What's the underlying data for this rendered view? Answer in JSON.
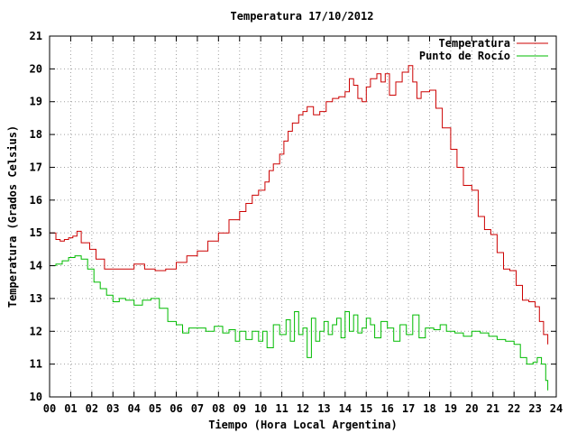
{
  "chart_data": {
    "type": "line",
    "title": "Temperatura 17/10/2012",
    "xlabel": "Tiempo (Hora Local Argentina)",
    "ylabel": "Temperatura (Grados Celsius)",
    "xlim": [
      0,
      24
    ],
    "ylim": [
      10,
      21
    ],
    "x_ticks": [
      "00",
      "01",
      "02",
      "03",
      "04",
      "05",
      "06",
      "07",
      "08",
      "09",
      "10",
      "11",
      "12",
      "13",
      "14",
      "15",
      "16",
      "17",
      "18",
      "19",
      "20",
      "21",
      "22",
      "23",
      "24"
    ],
    "y_ticks": [
      "10",
      "11",
      "12",
      "13",
      "14",
      "15",
      "16",
      "17",
      "18",
      "19",
      "20",
      "21"
    ],
    "grid": true,
    "legend_position": "top-right",
    "series": [
      {
        "name": "Temperatura",
        "color": "#cc0000",
        "points": [
          [
            0.0,
            15.0
          ],
          [
            0.3,
            14.8
          ],
          [
            0.5,
            14.75
          ],
          [
            0.7,
            14.8
          ],
          [
            0.9,
            14.85
          ],
          [
            1.1,
            14.9
          ],
          [
            1.3,
            15.05
          ],
          [
            1.5,
            14.7
          ],
          [
            1.9,
            14.5
          ],
          [
            2.2,
            14.2
          ],
          [
            2.6,
            13.9
          ],
          [
            3.5,
            13.9
          ],
          [
            4.0,
            14.05
          ],
          [
            4.5,
            13.9
          ],
          [
            5.0,
            13.85
          ],
          [
            5.5,
            13.9
          ],
          [
            6.0,
            14.1
          ],
          [
            6.5,
            14.3
          ],
          [
            7.0,
            14.45
          ],
          [
            7.5,
            14.75
          ],
          [
            8.0,
            15.0
          ],
          [
            8.5,
            15.4
          ],
          [
            9.0,
            15.65
          ],
          [
            9.3,
            15.9
          ],
          [
            9.6,
            16.15
          ],
          [
            9.9,
            16.3
          ],
          [
            10.2,
            16.55
          ],
          [
            10.4,
            16.9
          ],
          [
            10.6,
            17.1
          ],
          [
            10.9,
            17.4
          ],
          [
            11.1,
            17.8
          ],
          [
            11.3,
            18.1
          ],
          [
            11.5,
            18.35
          ],
          [
            11.8,
            18.6
          ],
          [
            12.0,
            18.7
          ],
          [
            12.2,
            18.85
          ],
          [
            12.5,
            18.6
          ],
          [
            12.8,
            18.7
          ],
          [
            13.1,
            19.0
          ],
          [
            13.4,
            19.1
          ],
          [
            13.7,
            19.15
          ],
          [
            14.0,
            19.3
          ],
          [
            14.2,
            19.7
          ],
          [
            14.4,
            19.5
          ],
          [
            14.6,
            19.1
          ],
          [
            14.8,
            19.0
          ],
          [
            15.0,
            19.45
          ],
          [
            15.2,
            19.7
          ],
          [
            15.5,
            19.85
          ],
          [
            15.7,
            19.6
          ],
          [
            15.9,
            19.85
          ],
          [
            16.1,
            19.2
          ],
          [
            16.4,
            19.6
          ],
          [
            16.7,
            19.9
          ],
          [
            17.0,
            20.1
          ],
          [
            17.2,
            19.6
          ],
          [
            17.4,
            19.1
          ],
          [
            17.6,
            19.3
          ],
          [
            18.0,
            19.35
          ],
          [
            18.3,
            18.8
          ],
          [
            18.6,
            18.2
          ],
          [
            19.0,
            17.55
          ],
          [
            19.3,
            17.0
          ],
          [
            19.6,
            16.45
          ],
          [
            20.0,
            16.3
          ],
          [
            20.3,
            15.5
          ],
          [
            20.6,
            15.1
          ],
          [
            20.9,
            14.95
          ],
          [
            21.2,
            14.4
          ],
          [
            21.5,
            13.9
          ],
          [
            21.8,
            13.85
          ],
          [
            22.1,
            13.4
          ],
          [
            22.4,
            12.95
          ],
          [
            22.7,
            12.9
          ],
          [
            23.0,
            12.75
          ],
          [
            23.2,
            12.3
          ],
          [
            23.4,
            11.9
          ],
          [
            23.6,
            11.6
          ]
        ]
      },
      {
        "name": "Punto de Rocío",
        "color": "#00bb00",
        "points": [
          [
            0.0,
            14.0
          ],
          [
            0.3,
            14.05
          ],
          [
            0.6,
            14.15
          ],
          [
            0.9,
            14.25
          ],
          [
            1.2,
            14.3
          ],
          [
            1.5,
            14.2
          ],
          [
            1.8,
            13.9
          ],
          [
            2.1,
            13.5
          ],
          [
            2.4,
            13.3
          ],
          [
            2.7,
            13.1
          ],
          [
            3.0,
            12.9
          ],
          [
            3.3,
            13.0
          ],
          [
            3.6,
            12.95
          ],
          [
            4.0,
            12.8
          ],
          [
            4.4,
            12.95
          ],
          [
            4.8,
            13.0
          ],
          [
            5.2,
            12.7
          ],
          [
            5.6,
            12.3
          ],
          [
            6.0,
            12.2
          ],
          [
            6.3,
            11.95
          ],
          [
            6.6,
            12.1
          ],
          [
            7.0,
            12.1
          ],
          [
            7.4,
            12.0
          ],
          [
            7.8,
            12.15
          ],
          [
            8.2,
            11.95
          ],
          [
            8.5,
            12.05
          ],
          [
            8.8,
            11.7
          ],
          [
            9.0,
            12.0
          ],
          [
            9.3,
            11.75
          ],
          [
            9.6,
            12.0
          ],
          [
            9.9,
            11.7
          ],
          [
            10.1,
            12.0
          ],
          [
            10.3,
            11.5
          ],
          [
            10.6,
            12.2
          ],
          [
            10.9,
            11.9
          ],
          [
            11.2,
            12.35
          ],
          [
            11.4,
            11.7
          ],
          [
            11.6,
            12.6
          ],
          [
            11.8,
            11.9
          ],
          [
            12.0,
            12.1
          ],
          [
            12.2,
            11.2
          ],
          [
            12.4,
            12.4
          ],
          [
            12.6,
            11.7
          ],
          [
            12.8,
            12.0
          ],
          [
            13.0,
            12.3
          ],
          [
            13.2,
            11.9
          ],
          [
            13.4,
            12.2
          ],
          [
            13.6,
            12.4
          ],
          [
            13.8,
            11.8
          ],
          [
            14.0,
            12.6
          ],
          [
            14.2,
            12.0
          ],
          [
            14.4,
            12.5
          ],
          [
            14.6,
            11.95
          ],
          [
            14.8,
            12.1
          ],
          [
            15.0,
            12.4
          ],
          [
            15.2,
            12.2
          ],
          [
            15.4,
            11.8
          ],
          [
            15.7,
            12.3
          ],
          [
            16.0,
            12.1
          ],
          [
            16.3,
            11.7
          ],
          [
            16.6,
            12.2
          ],
          [
            16.9,
            11.9
          ],
          [
            17.2,
            12.5
          ],
          [
            17.5,
            11.8
          ],
          [
            17.8,
            12.1
          ],
          [
            18.2,
            12.05
          ],
          [
            18.5,
            12.2
          ],
          [
            18.8,
            12.0
          ],
          [
            19.2,
            11.95
          ],
          [
            19.6,
            11.85
          ],
          [
            20.0,
            12.0
          ],
          [
            20.4,
            11.95
          ],
          [
            20.8,
            11.85
          ],
          [
            21.2,
            11.75
          ],
          [
            21.6,
            11.7
          ],
          [
            22.0,
            11.6
          ],
          [
            22.3,
            11.2
          ],
          [
            22.6,
            11.0
          ],
          [
            22.9,
            11.05
          ],
          [
            23.1,
            11.2
          ],
          [
            23.3,
            11.0
          ],
          [
            23.5,
            10.5
          ],
          [
            23.6,
            10.2
          ]
        ]
      }
    ]
  }
}
